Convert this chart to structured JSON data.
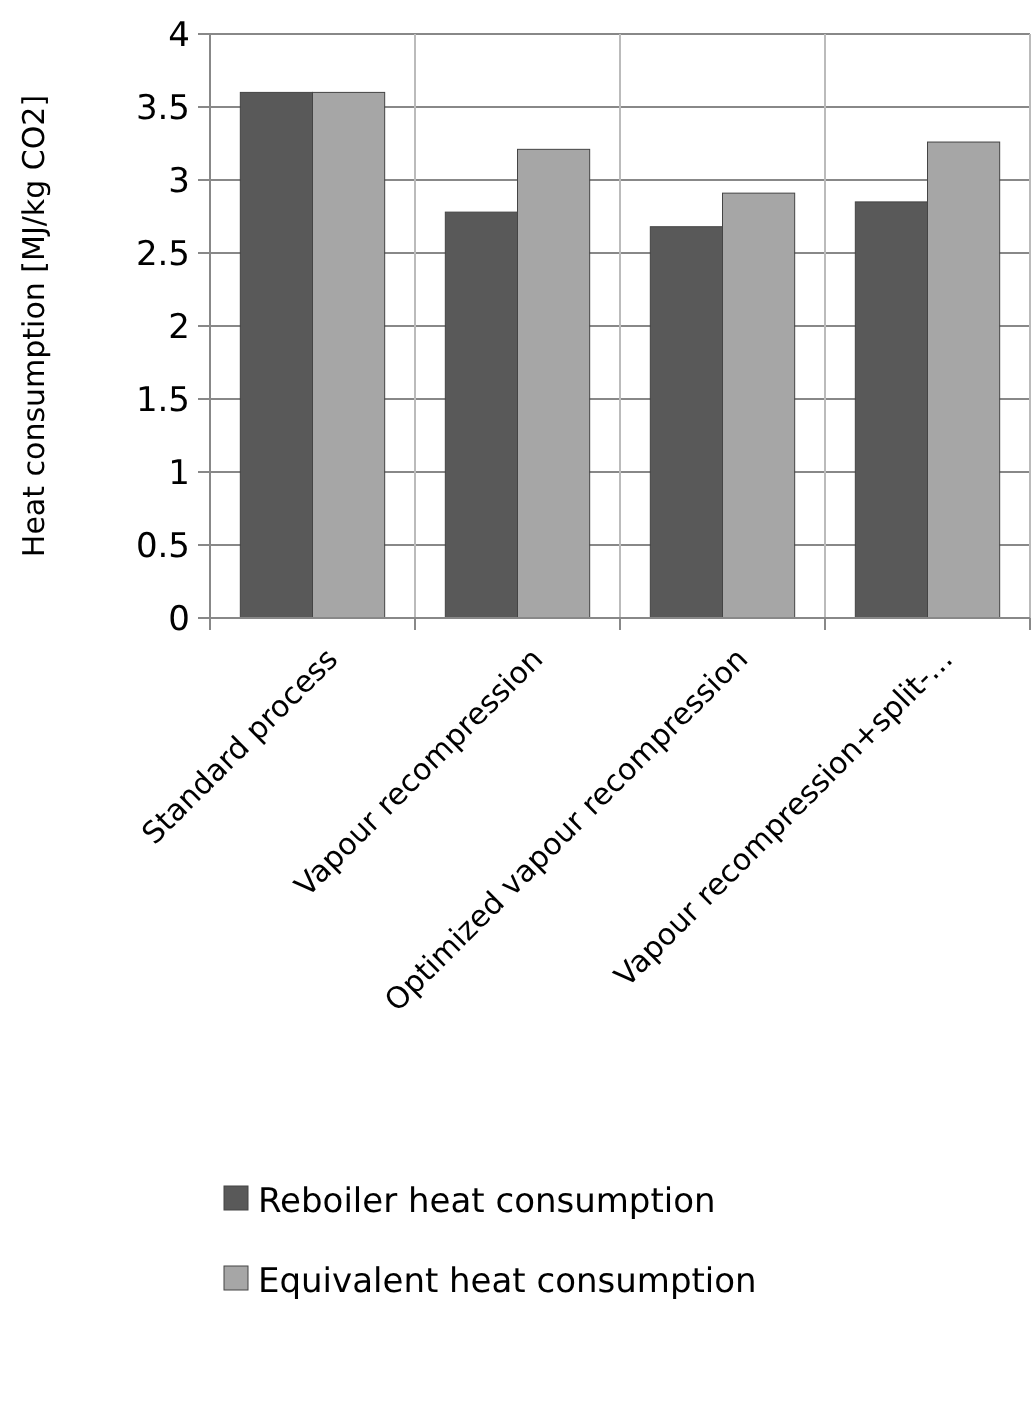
{
  "chart_data": {
    "type": "bar",
    "ylabel": "Heat consumption [MJ/kg CO2]",
    "categories": [
      "Standard process",
      "Vapour recompression",
      "Optimized vapour recompression",
      "Vapour recompression+split-..."
    ],
    "series": [
      {
        "name": "Reboiler heat consumption",
        "color": "#595959",
        "values": [
          3.6,
          2.78,
          2.68,
          2.85
        ]
      },
      {
        "name": "Equivalent heat consumption",
        "color": "#a6a6a6",
        "values": [
          3.6,
          3.21,
          2.91,
          3.26
        ]
      }
    ],
    "ylim": [
      0,
      4
    ],
    "yticks": [
      0,
      0.5,
      1,
      1.5,
      2,
      2.5,
      3,
      3.5,
      4
    ],
    "grid": true,
    "legend": "bottom"
  }
}
